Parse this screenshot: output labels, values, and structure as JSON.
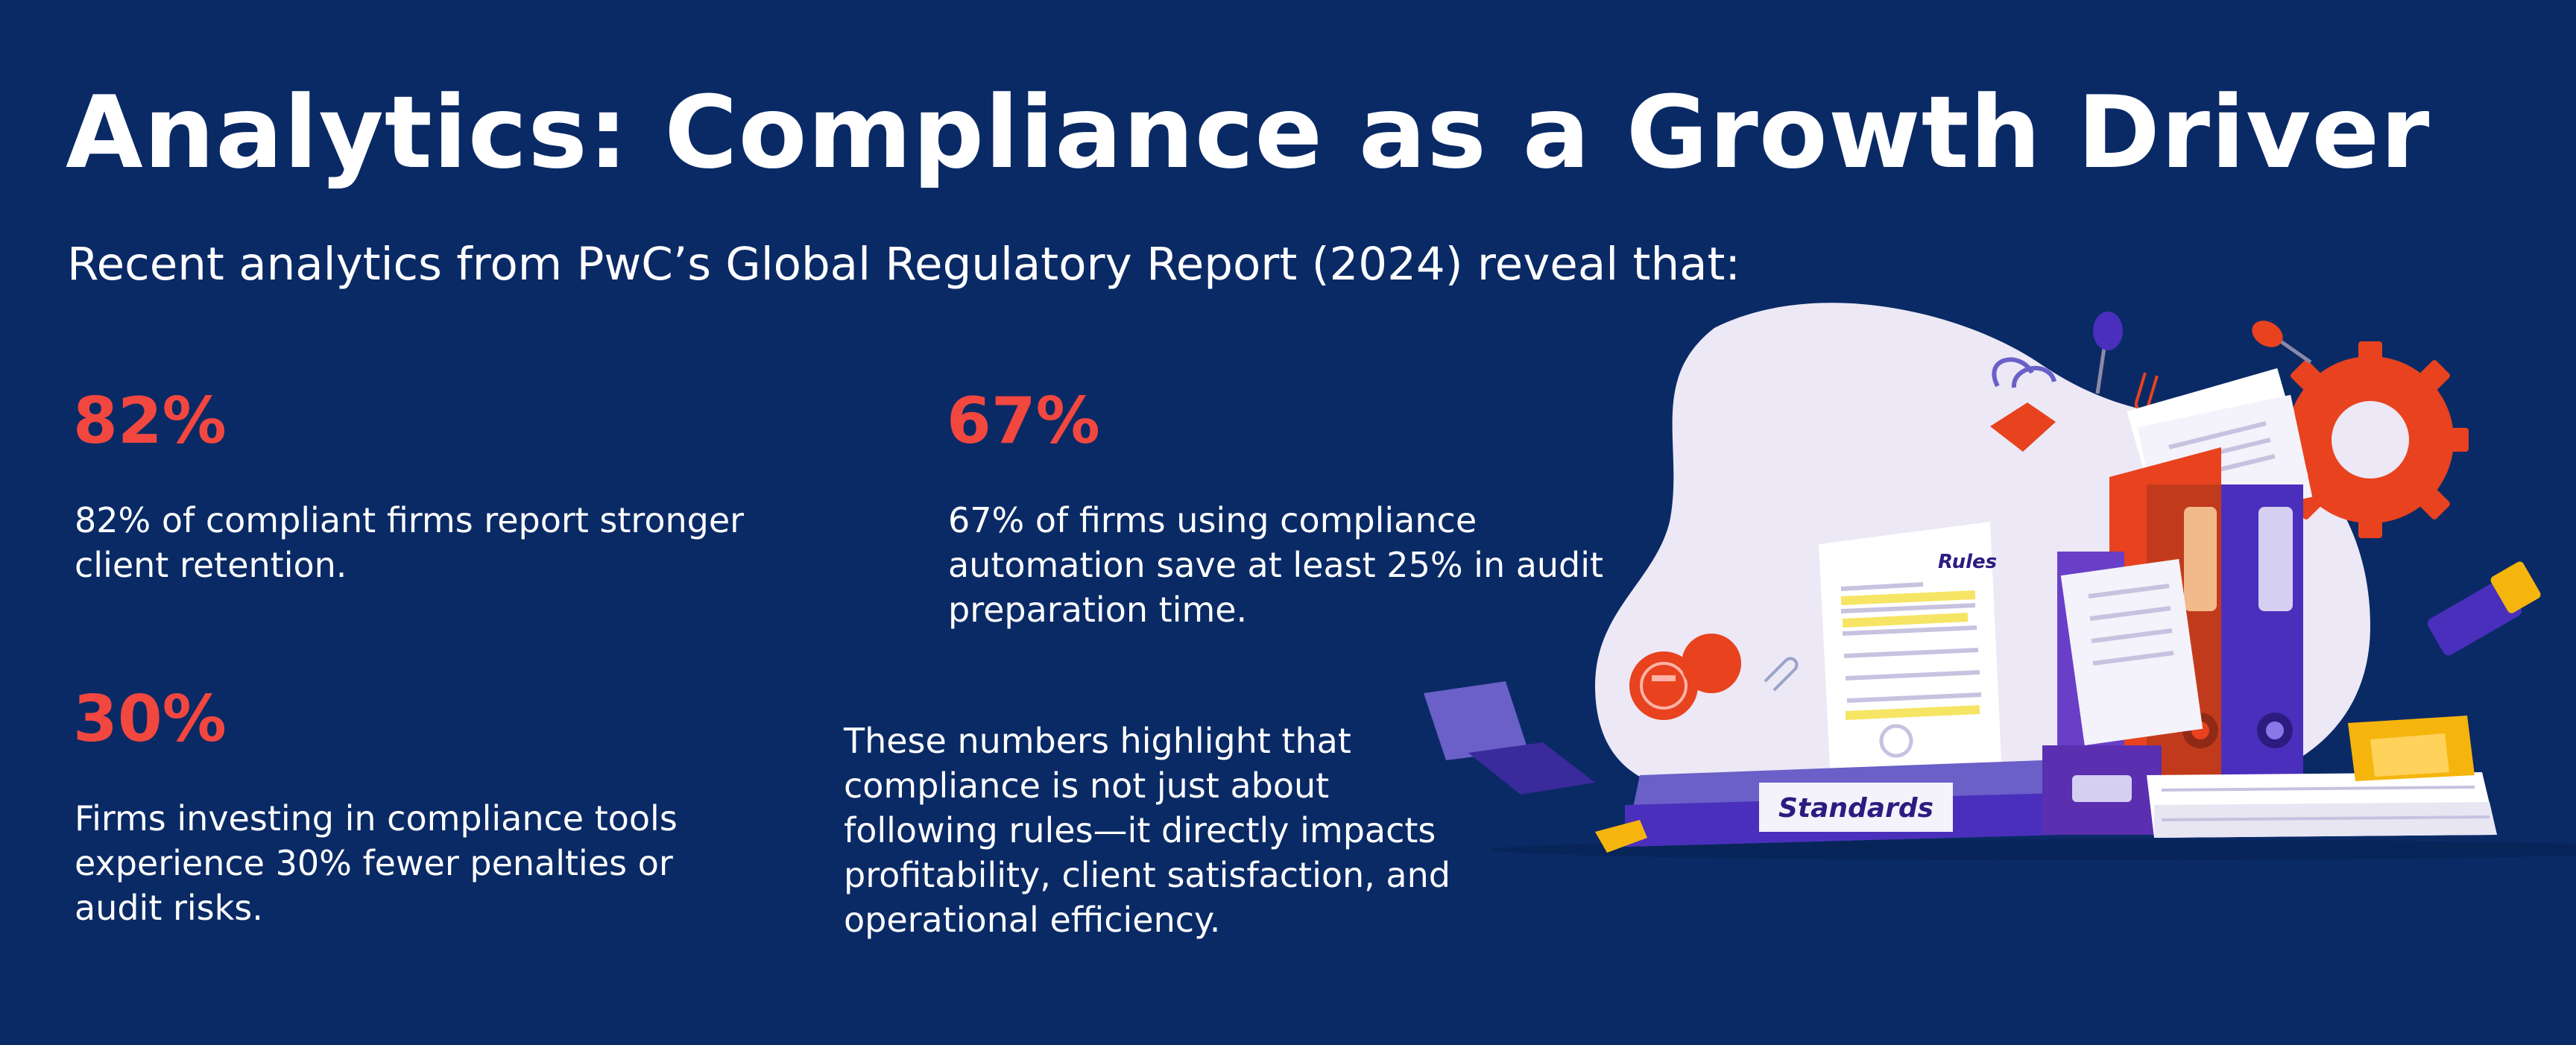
{
  "page": {
    "title": "Analytics: Compliance as a Growth Driver",
    "subtitle": "Recent analytics from PwC’s Global Regulatory Report (2024) reveal that:"
  },
  "stats": [
    {
      "value": "82%",
      "lines": [
        "82% of compliant firms report stronger",
        "client retention."
      ]
    },
    {
      "value": "67%",
      "lines": [
        "67% of firms using compliance",
        "automation save at least 25% in audit",
        "preparation time."
      ]
    },
    {
      "value": "30%",
      "lines": [
        "Firms investing in compliance tools",
        "experience 30% fewer penalties or",
        "audit risks."
      ]
    }
  ],
  "conclusion": {
    "lines": [
      "These numbers highlight that",
      "compliance is not just about",
      "following rules—it directly impacts",
      "profitability, client satisfaction, and",
      "operational efficiency."
    ]
  },
  "illustration": {
    "binder_label": "Standards",
    "document_label": "Rules"
  },
  "colors": {
    "background": "#0a2a66",
    "accent": "#f2473f",
    "text": "#ffffff"
  }
}
